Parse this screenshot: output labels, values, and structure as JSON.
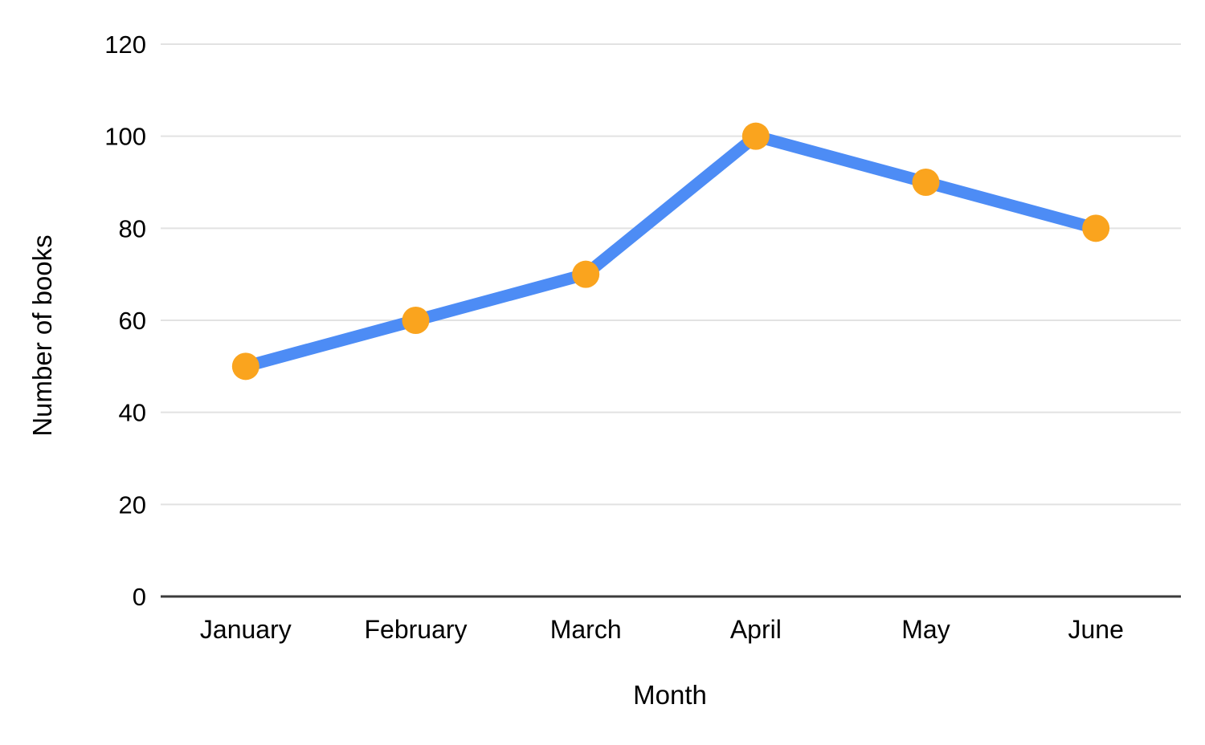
{
  "chart_data": {
    "type": "line",
    "categories": [
      "January",
      "February",
      "March",
      "April",
      "May",
      "June"
    ],
    "values": [
      50,
      60,
      70,
      100,
      90,
      80
    ],
    "title": "",
    "xlabel": "Month",
    "ylabel": "Number of books",
    "ylim": [
      0,
      120
    ],
    "yticks": [
      0,
      20,
      40,
      60,
      80,
      100,
      120
    ],
    "grid": true,
    "legend": "none",
    "colors": {
      "line": "#4d8cf5",
      "marker": "#faa41e",
      "gridline": "#e2e2e2",
      "baseline": "#3c3c3c",
      "text": "#000000",
      "background": "#ffffff"
    }
  }
}
